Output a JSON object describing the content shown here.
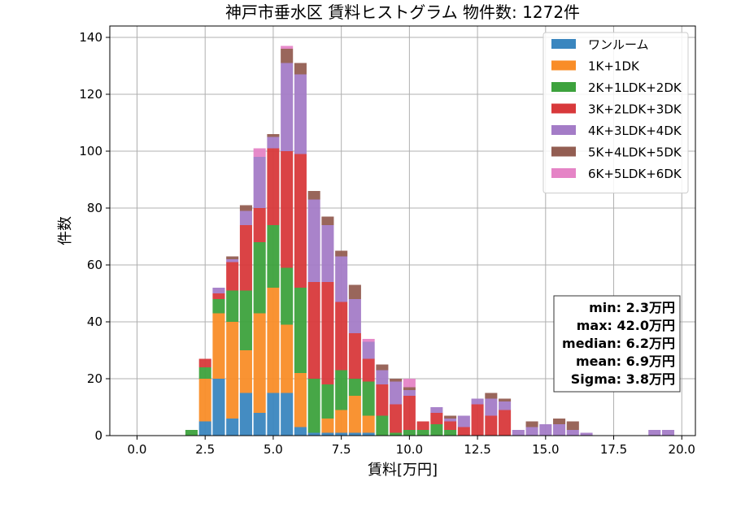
{
  "chart_data": {
    "type": "bar",
    "stacked": true,
    "title": "神戸市垂水区 賃料ヒストグラム  物件数: 1272件",
    "xlabel": "賃料[万円]",
    "ylabel": "件数",
    "xlim": [
      -1.0,
      20.5
    ],
    "ylim": [
      0,
      144
    ],
    "xticks": [
      0.0,
      2.5,
      5.0,
      7.5,
      10.0,
      12.5,
      15.0,
      17.5,
      20.0
    ],
    "xtick_labels": [
      "0.0",
      "2.5",
      "5.0",
      "7.5",
      "10.0",
      "12.5",
      "15.0",
      "17.5",
      "20.0"
    ],
    "yticks": [
      0,
      20,
      40,
      60,
      80,
      100,
      120,
      140
    ],
    "ytick_labels": [
      "0",
      "20",
      "40",
      "60",
      "80",
      "100",
      "120",
      "140"
    ],
    "grid": true,
    "legend_position": "top-right",
    "bin_width": 0.5,
    "x": [
      2.0,
      2.5,
      3.0,
      3.5,
      4.0,
      4.5,
      5.0,
      5.5,
      6.0,
      6.5,
      7.0,
      7.5,
      8.0,
      8.5,
      9.0,
      9.5,
      10.0,
      10.5,
      11.0,
      11.5,
      12.0,
      12.5,
      13.0,
      13.5,
      14.0,
      14.5,
      15.0,
      15.5,
      16.0,
      16.5,
      17.0,
      17.5,
      18.0,
      18.5,
      19.0,
      19.5
    ],
    "series": [
      {
        "name": "ワンルーム",
        "color": "#3a86bf",
        "values": [
          0,
          5,
          20,
          6,
          15,
          8,
          15,
          15,
          3,
          1,
          1,
          1,
          1,
          1,
          0,
          0,
          0,
          0,
          0,
          0,
          0,
          0,
          0,
          0,
          0,
          0,
          0,
          0,
          0,
          0,
          0,
          0,
          0,
          0,
          0,
          0
        ]
      },
      {
        "name": "1K+1DK",
        "color": "#f98d28",
        "values": [
          0,
          15,
          23,
          34,
          15,
          35,
          37,
          24,
          19,
          0,
          5,
          8,
          13,
          6,
          0,
          0,
          0,
          0,
          0,
          0,
          0,
          0,
          0,
          0,
          0,
          0,
          0,
          0,
          0,
          0,
          0,
          0,
          0,
          0,
          0,
          0
        ]
      },
      {
        "name": "2K+1LDK+2DK",
        "color": "#3da23d",
        "values": [
          2,
          4,
          5,
          11,
          21,
          25,
          22,
          20,
          30,
          19,
          12,
          14,
          6,
          12,
          7,
          1,
          2,
          2,
          4,
          2,
          0,
          0,
          0,
          0,
          0,
          0,
          0,
          0,
          0,
          0,
          0,
          0,
          0,
          0,
          0,
          0
        ]
      },
      {
        "name": "3K+2LDK+3DK",
        "color": "#d8393b",
        "values": [
          0,
          3,
          2,
          10,
          23,
          12,
          27,
          41,
          47,
          34,
          36,
          24,
          16,
          8,
          11,
          10,
          12,
          3,
          4,
          3,
          3,
          11,
          7,
          9,
          0,
          0,
          0,
          0,
          0,
          0,
          0,
          0,
          0,
          0,
          0,
          0
        ]
      },
      {
        "name": "4K+3LDK+4DK",
        "color": "#a47cc7",
        "values": [
          0,
          0,
          2,
          1,
          5,
          18,
          4,
          31,
          28,
          29,
          20,
          16,
          12,
          6,
          5,
          8,
          2,
          0,
          2,
          1,
          4,
          2,
          6,
          3,
          2,
          3,
          4,
          4,
          2,
          1,
          0,
          0,
          0,
          0,
          2,
          2
        ]
      },
      {
        "name": "5K+4LDK+5DK",
        "color": "#935e52",
        "values": [
          0,
          0,
          0,
          1,
          2,
          0,
          1,
          5,
          4,
          3,
          3,
          2,
          5,
          0,
          2,
          1,
          1,
          0,
          0,
          1,
          0,
          0,
          2,
          1,
          0,
          2,
          0,
          2,
          3,
          0,
          0,
          0,
          0,
          0,
          0,
          0
        ]
      },
      {
        "name": "6K+5LDK+6DK",
        "color": "#e584c6",
        "values": [
          0,
          0,
          0,
          0,
          0,
          3,
          0,
          1,
          0,
          0,
          0,
          0,
          0,
          1,
          0,
          0,
          3,
          0,
          0,
          0,
          0,
          0,
          0,
          0,
          0,
          0,
          0,
          0,
          0,
          0,
          0,
          0,
          0,
          0,
          0,
          0
        ]
      }
    ],
    "stats": {
      "min": "min: 2.3万円",
      "max": "max: 42.0万円",
      "median": "median: 6.2万円",
      "mean": "mean: 6.9万円",
      "sigma": "Sigma: 3.8万円"
    }
  }
}
